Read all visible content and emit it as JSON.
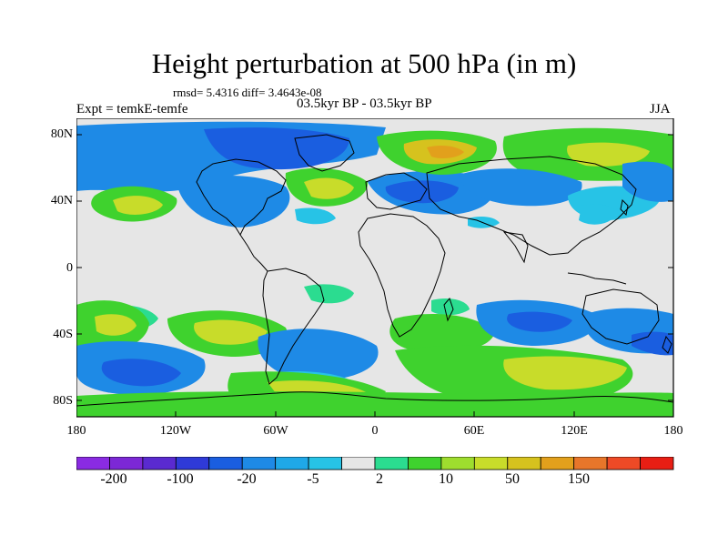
{
  "title": "Height perturbation at 500 hPa (in m)",
  "stats": "rmsd= 5.4316 diff= 3.4643e-08",
  "experiment": "Expt = temkE-temfe",
  "period": "03.5kyr BP - 03.5kyr BP",
  "season": "JJA",
  "lat_labels": [
    "80N",
    "40N",
    "0",
    "40S",
    "80S"
  ],
  "lon_labels": [
    "180",
    "120W",
    "60W",
    "0",
    "60E",
    "120E",
    "180"
  ],
  "colorbar": {
    "colors": [
      "#8a2be2",
      "#7c28d6",
      "#5a2ad0",
      "#2f3ad8",
      "#1a5ee0",
      "#1e8ae6",
      "#1fa8e8",
      "#27c3e6",
      "#e6e6e6",
      "#2bdc90",
      "#3fd22e",
      "#9edd2e",
      "#c8dc2a",
      "#d6c21e",
      "#e2a01c",
      "#e8762a",
      "#ee4a26",
      "#e81e14"
    ],
    "labels": [
      "-200",
      "-100",
      "-20",
      "-5",
      "2",
      "10",
      "50",
      "150"
    ]
  },
  "field_palette": {
    "strong_neg": "#1a5ee0",
    "neg": "#1e8ae6",
    "weak_neg": "#27c3e6",
    "neutral": "#e6e6e6",
    "weak_pos": "#2bdc90",
    "pos": "#3fd22e",
    "strong_pos": "#c8dc2a",
    "very_strong_pos": "#d6c21e",
    "peak": "#e2a01c"
  }
}
